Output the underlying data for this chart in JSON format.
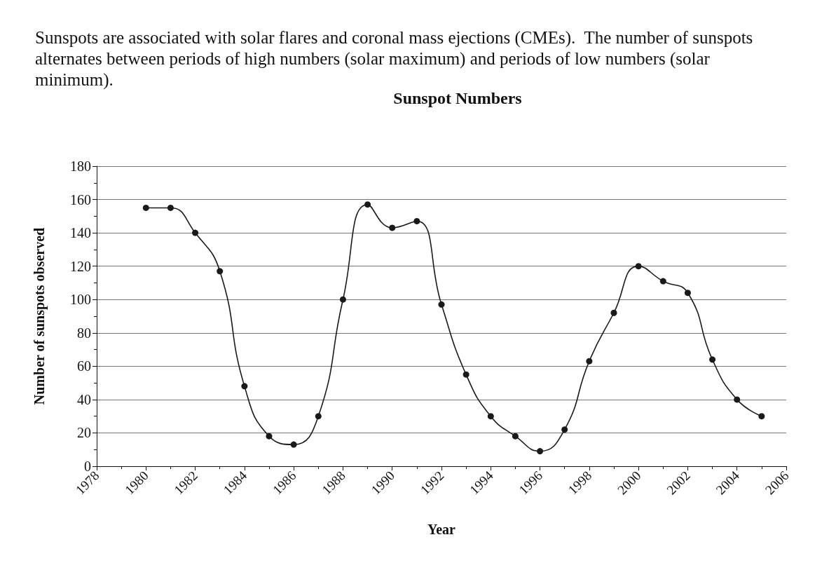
{
  "chart_data": {
    "type": "line",
    "title": "Sunspot Numbers",
    "subtitle": "Sunspots are associated with solar flares and coronal mass ejections (CMEs).  The number of sunspots alternates between periods of high numbers (solar maximum) and periods of low numbers (solar minimum).",
    "xlabel": "Year",
    "ylabel": "Number of sunspots observed",
    "x": [
      1980,
      1981,
      1982,
      1983,
      1984,
      1985,
      1986,
      1987,
      1988,
      1989,
      1990,
      1991,
      1992,
      1993,
      1994,
      1995,
      1996,
      1997,
      1998,
      1999,
      2000,
      2001,
      2002,
      2003,
      2004,
      2005
    ],
    "series": [
      {
        "color": "#1a1a1a",
        "values": [
          155,
          155,
          140,
          117,
          48,
          18,
          13,
          30,
          100,
          157,
          143,
          147,
          97,
          55,
          30,
          18,
          9,
          22,
          63,
          92,
          120,
          111,
          104,
          64,
          40,
          30
        ]
      }
    ],
    "xlim": [
      1978,
      2006
    ],
    "xticks": [
      1978,
      1980,
      1982,
      1984,
      1986,
      1988,
      1990,
      1992,
      1994,
      1996,
      1998,
      2000,
      2002,
      2004,
      2006
    ],
    "ylim": [
      0,
      180
    ],
    "yticks": [
      0,
      20,
      40,
      60,
      80,
      100,
      120,
      140,
      160,
      180
    ],
    "grid": "y",
    "marker": "circle",
    "line_style": "solid"
  }
}
